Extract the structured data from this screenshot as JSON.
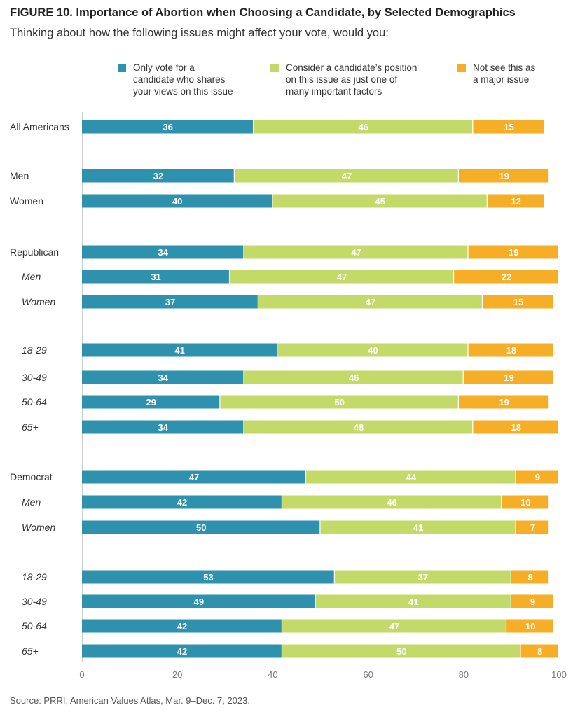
{
  "title": "FIGURE 10. Importance of Abortion when Choosing a Candidate, by Selected Demographics",
  "subtitle": "Thinking about how the following issues might affect your vote, would you:",
  "source": "Source: PRRI, American Values Atlas, Mar. 9–Dec. 7, 2023.",
  "colors": {
    "only_vote": "#2e91ad",
    "consider": "#c3da69",
    "not_major": "#f6ae26",
    "axis": "#cccccc",
    "tick_text": "#777777"
  },
  "legend": [
    {
      "label": "Only vote for a\ncandidate who shares\nyour views on this issue",
      "color": "#2e91ad"
    },
    {
      "label": "Consider a candidate’s position\non this issue as just one of\nmany important factors",
      "color": "#c3da69"
    },
    {
      "label": "Not see this as\na major issue",
      "color": "#f6ae26"
    }
  ],
  "chart_data": {
    "type": "bar",
    "orientation": "horizontal",
    "stacked": true,
    "xlim": [
      0,
      100
    ],
    "xticks": [
      0,
      20,
      40,
      60,
      80,
      100
    ],
    "categories": [
      "All Americans",
      "Men",
      "Women",
      "Republican",
      "Men",
      "Women",
      "18-29",
      "30-49",
      "50-64",
      "65+",
      "Democrat",
      "Men",
      "Women",
      "18-29",
      "30-49",
      "50-64",
      "65+"
    ],
    "italic": [
      false,
      false,
      false,
      false,
      true,
      true,
      true,
      true,
      true,
      true,
      false,
      true,
      true,
      true,
      true,
      true,
      true
    ],
    "series": [
      {
        "name": "Only vote for a candidate who shares your views on this issue",
        "color": "#2e91ad",
        "values": [
          36,
          32,
          40,
          34,
          31,
          37,
          41,
          34,
          29,
          34,
          47,
          42,
          50,
          53,
          49,
          42,
          42
        ]
      },
      {
        "name": "Consider a candidate’s position on this issue as just one of many important factors",
        "color": "#c3da69",
        "values": [
          46,
          47,
          45,
          47,
          47,
          47,
          40,
          46,
          50,
          48,
          44,
          46,
          41,
          37,
          41,
          47,
          50
        ]
      },
      {
        "name": "Not see this as a major issue",
        "color": "#f6ae26",
        "values": [
          15,
          19,
          12,
          19,
          22,
          15,
          18,
          19,
          19,
          18,
          9,
          10,
          7,
          8,
          9,
          10,
          8
        ]
      }
    ]
  }
}
